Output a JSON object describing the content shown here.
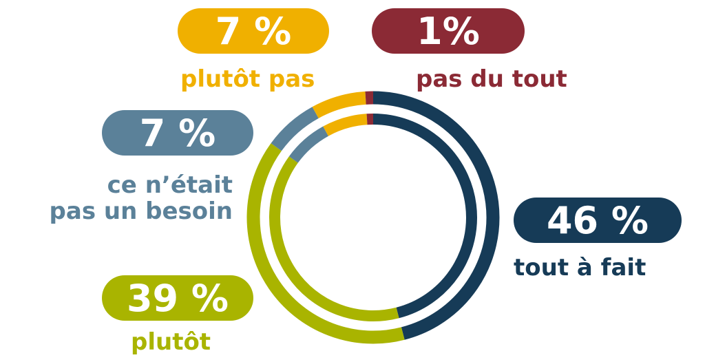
{
  "chart_data": {
    "type": "pie",
    "categories": [
      "tout à fait",
      "plutôt",
      "ce n’était\npas un besoin",
      "plutôt pas",
      "pas du tout"
    ],
    "values": [
      46,
      39,
      7,
      7,
      1
    ],
    "value_labels": [
      "46 %",
      "39 %",
      "7 %",
      "7 %",
      "1%"
    ],
    "colors": [
      "#163b57",
      "#a9b400",
      "#5b8199",
      "#f0b000",
      "#8b2a35"
    ]
  }
}
